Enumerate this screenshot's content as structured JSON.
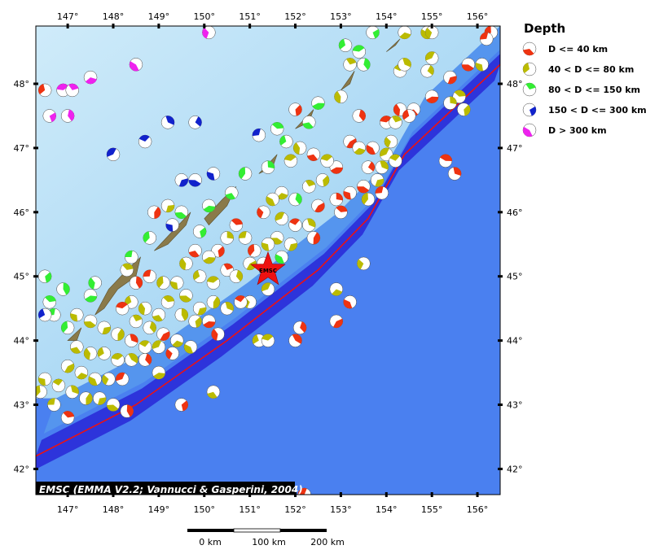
{
  "map": {
    "lon_range": [
      146.3,
      156.5
    ],
    "lat_range": [
      41.6,
      48.9
    ],
    "lon_ticks": [
      {
        "value": 147,
        "label": "147°"
      },
      {
        "value": 148,
        "label": "148°"
      },
      {
        "value": 149,
        "label": "149°"
      },
      {
        "value": 150,
        "label": "150°"
      },
      {
        "value": 151,
        "label": "151°"
      },
      {
        "value": 152,
        "label": "152°"
      },
      {
        "value": 153,
        "label": "153°"
      },
      {
        "value": 154,
        "label": "154°"
      },
      {
        "value": 155,
        "label": "155°"
      },
      {
        "value": 156,
        "label": "156°"
      }
    ],
    "lat_ticks": [
      {
        "value": 42,
        "label": "42°"
      },
      {
        "value": 43,
        "label": "43°"
      },
      {
        "value": 44,
        "label": "44°"
      },
      {
        "value": 45,
        "label": "45°"
      },
      {
        "value": 46,
        "label": "46°"
      },
      {
        "value": 47,
        "label": "47°"
      },
      {
        "value": 48,
        "label": "48°"
      }
    ],
    "trench_line": [
      [
        146.3,
        42.2
      ],
      [
        148.5,
        43.0
      ],
      [
        150.5,
        44.0
      ],
      [
        152.5,
        45.1
      ],
      [
        153.6,
        45.9
      ],
      [
        154.4,
        46.9
      ],
      [
        155.3,
        47.5
      ],
      [
        156.5,
        48.3
      ]
    ],
    "islands": [
      [
        [
          147.6,
          44.4
        ],
        [
          147.9,
          44.8
        ],
        [
          148.3,
          45.1
        ],
        [
          148.6,
          45.3
        ],
        [
          148.5,
          45.0
        ],
        [
          148.1,
          44.8
        ],
        [
          147.8,
          44.5
        ]
      ],
      [
        [
          148.9,
          45.4
        ],
        [
          149.3,
          45.7
        ],
        [
          149.7,
          46.0
        ],
        [
          149.6,
          45.8
        ],
        [
          149.2,
          45.5
        ]
      ],
      [
        [
          150.0,
          45.9
        ],
        [
          150.4,
          46.2
        ],
        [
          150.7,
          46.4
        ],
        [
          150.5,
          46.1
        ],
        [
          150.1,
          45.8
        ]
      ],
      [
        [
          151.2,
          46.6
        ],
        [
          151.6,
          46.9
        ],
        [
          151.5,
          46.7
        ]
      ],
      [
        [
          152.0,
          47.3
        ],
        [
          152.4,
          47.6
        ],
        [
          152.3,
          47.4
        ]
      ],
      [
        [
          153.0,
          47.9
        ],
        [
          153.3,
          48.2
        ],
        [
          153.2,
          48.0
        ]
      ],
      [
        [
          154.0,
          48.5
        ],
        [
          154.3,
          48.7
        ],
        [
          154.2,
          48.6
        ]
      ],
      [
        [
          147.0,
          44.0
        ],
        [
          147.3,
          44.2
        ],
        [
          147.2,
          44.0
        ]
      ]
    ],
    "epicenter": {
      "lon": 151.4,
      "lat": 45.1,
      "label": "EMSC"
    },
    "credit": "EMSC (EMMA V2.2; Vannucci & Gasperini, 2004)"
  },
  "legend": {
    "title": "Depth",
    "items": [
      {
        "label": "D <= 40 km",
        "color": "#ee3311",
        "key": "d1"
      },
      {
        "label": "40 < D <= 80 km",
        "color": "#bbbb00",
        "key": "d2"
      },
      {
        "label": "80 < D <= 150 km",
        "color": "#33ee33",
        "key": "d3"
      },
      {
        "label": "150 < D <= 300 km",
        "color": "#1122cc",
        "key": "d4"
      },
      {
        "label": "D > 300 km",
        "color": "#ee22ee",
        "key": "d5"
      }
    ]
  },
  "scale_bar": {
    "labels": [
      "0 km",
      "100 km",
      "200 km"
    ]
  },
  "events": [
    {
      "lon": 146.5,
      "lat": 47.9,
      "d": "d1"
    },
    {
      "lon": 146.9,
      "lat": 47.9,
      "d": "d5"
    },
    {
      "lon": 147.1,
      "lat": 47.9,
      "d": "d5"
    },
    {
      "lon": 147.0,
      "lat": 47.5,
      "d": "d5"
    },
    {
      "lon": 146.6,
      "lat": 47.5,
      "d": "d5"
    },
    {
      "lon": 147.5,
      "lat": 48.1,
      "d": "d5"
    },
    {
      "lon": 148.5,
      "lat": 48.3,
      "d": "d5"
    },
    {
      "lon": 150.1,
      "lat": 48.8,
      "d": "d5"
    },
    {
      "lon": 148.0,
      "lat": 46.9,
      "d": "d4"
    },
    {
      "lon": 148.7,
      "lat": 47.1,
      "d": "d4"
    },
    {
      "lon": 149.2,
      "lat": 47.4,
      "d": "d4"
    },
    {
      "lon": 149.8,
      "lat": 47.4,
      "d": "d4"
    },
    {
      "lon": 149.5,
      "lat": 46.5,
      "d": "d4"
    },
    {
      "lon": 149.8,
      "lat": 46.5,
      "d": "d4"
    },
    {
      "lon": 150.2,
      "lat": 46.6,
      "d": "d4"
    },
    {
      "lon": 150.9,
      "lat": 46.6,
      "d": "d3"
    },
    {
      "lon": 151.2,
      "lat": 47.2,
      "d": "d4"
    },
    {
      "lon": 151.6,
      "lat": 47.3,
      "d": "d3"
    },
    {
      "lon": 151.4,
      "lat": 46.7,
      "d": "d3"
    },
    {
      "lon": 152.0,
      "lat": 47.6,
      "d": "d1"
    },
    {
      "lon": 152.5,
      "lat": 47.7,
      "d": "d3"
    },
    {
      "lon": 152.3,
      "lat": 47.4,
      "d": "d3"
    },
    {
      "lon": 153.0,
      "lat": 47.8,
      "d": "d2"
    },
    {
      "lon": 153.1,
      "lat": 48.6,
      "d": "d3"
    },
    {
      "lon": 153.4,
      "lat": 48.5,
      "d": "d3"
    },
    {
      "lon": 153.2,
      "lat": 48.3,
      "d": "d2"
    },
    {
      "lon": 153.5,
      "lat": 48.3,
      "d": "d3"
    },
    {
      "lon": 153.7,
      "lat": 48.8,
      "d": "d3"
    },
    {
      "lon": 154.4,
      "lat": 48.8,
      "d": "d2"
    },
    {
      "lon": 154.9,
      "lat": 48.8,
      "d": "d2"
    },
    {
      "lon": 155.0,
      "lat": 48.8,
      "d": "d2"
    },
    {
      "lon": 155.0,
      "lat": 48.4,
      "d": "d2"
    },
    {
      "lon": 154.3,
      "lat": 48.2,
      "d": "d2"
    },
    {
      "lon": 154.4,
      "lat": 48.3,
      "d": "d2"
    },
    {
      "lon": 154.9,
      "lat": 48.2,
      "d": "d2"
    },
    {
      "lon": 155.4,
      "lat": 48.1,
      "d": "d1"
    },
    {
      "lon": 155.8,
      "lat": 48.3,
      "d": "d1"
    },
    {
      "lon": 156.1,
      "lat": 48.3,
      "d": "d2"
    },
    {
      "lon": 156.3,
      "lat": 48.8,
      "d": "d1"
    },
    {
      "lon": 156.2,
      "lat": 48.7,
      "d": "d1"
    },
    {
      "lon": 155.6,
      "lat": 47.8,
      "d": "d2"
    },
    {
      "lon": 155.4,
      "lat": 47.7,
      "d": "d2"
    },
    {
      "lon": 155.7,
      "lat": 47.6,
      "d": "d2"
    },
    {
      "lon": 155.0,
      "lat": 47.8,
      "d": "d1"
    },
    {
      "lon": 154.6,
      "lat": 47.6,
      "d": "d1"
    },
    {
      "lon": 154.3,
      "lat": 47.6,
      "d": "d1"
    },
    {
      "lon": 154.5,
      "lat": 47.5,
      "d": "d1"
    },
    {
      "lon": 154.0,
      "lat": 47.4,
      "d": "d1"
    },
    {
      "lon": 154.2,
      "lat": 47.4,
      "d": "d2"
    },
    {
      "lon": 153.4,
      "lat": 47.5,
      "d": "d1"
    },
    {
      "lon": 153.2,
      "lat": 47.1,
      "d": "d1"
    },
    {
      "lon": 153.4,
      "lat": 47.0,
      "d": "d2"
    },
    {
      "lon": 153.7,
      "lat": 47.0,
      "d": "d1"
    },
    {
      "lon": 154.1,
      "lat": 47.1,
      "d": "d2"
    },
    {
      "lon": 154.0,
      "lat": 46.9,
      "d": "d2"
    },
    {
      "lon": 154.2,
      "lat": 46.8,
      "d": "d2"
    },
    {
      "lon": 153.9,
      "lat": 46.7,
      "d": "d2"
    },
    {
      "lon": 153.6,
      "lat": 46.7,
      "d": "d1"
    },
    {
      "lon": 153.8,
      "lat": 46.5,
      "d": "d2"
    },
    {
      "lon": 153.5,
      "lat": 46.4,
      "d": "d1"
    },
    {
      "lon": 153.2,
      "lat": 46.3,
      "d": "d1"
    },
    {
      "lon": 153.6,
      "lat": 46.2,
      "d": "d2"
    },
    {
      "lon": 153.9,
      "lat": 46.3,
      "d": "d1"
    },
    {
      "lon": 153.0,
      "lat": 46.0,
      "d": "d1"
    },
    {
      "lon": 152.9,
      "lat": 46.2,
      "d": "d1"
    },
    {
      "lon": 152.6,
      "lat": 46.5,
      "d": "d2"
    },
    {
      "lon": 152.9,
      "lat": 46.7,
      "d": "d1"
    },
    {
      "lon": 152.4,
      "lat": 46.9,
      "d": "d1"
    },
    {
      "lon": 152.1,
      "lat": 47.0,
      "d": "d2"
    },
    {
      "lon": 151.8,
      "lat": 47.1,
      "d": "d3"
    },
    {
      "lon": 151.9,
      "lat": 46.8,
      "d": "d2"
    },
    {
      "lon": 152.3,
      "lat": 46.4,
      "d": "d2"
    },
    {
      "lon": 152.0,
      "lat": 46.2,
      "d": "d3"
    },
    {
      "lon": 152.5,
      "lat": 46.1,
      "d": "d1"
    },
    {
      "lon": 151.7,
      "lat": 46.3,
      "d": "d2"
    },
    {
      "lon": 151.5,
      "lat": 46.2,
      "d": "d2"
    },
    {
      "lon": 151.3,
      "lat": 46.0,
      "d": "d1"
    },
    {
      "lon": 151.7,
      "lat": 45.9,
      "d": "d2"
    },
    {
      "lon": 152.0,
      "lat": 45.8,
      "d": "d1"
    },
    {
      "lon": 152.3,
      "lat": 45.8,
      "d": "d2"
    },
    {
      "lon": 152.4,
      "lat": 45.6,
      "d": "d1"
    },
    {
      "lon": 151.9,
      "lat": 45.5,
      "d": "d2"
    },
    {
      "lon": 151.6,
      "lat": 45.6,
      "d": "d2"
    },
    {
      "lon": 151.4,
      "lat": 45.5,
      "d": "d2"
    },
    {
      "lon": 151.1,
      "lat": 45.4,
      "d": "d1"
    },
    {
      "lon": 150.9,
      "lat": 45.6,
      "d": "d2"
    },
    {
      "lon": 150.7,
      "lat": 45.8,
      "d": "d1"
    },
    {
      "lon": 150.5,
      "lat": 45.6,
      "d": "d2"
    },
    {
      "lon": 150.3,
      "lat": 45.4,
      "d": "d1"
    },
    {
      "lon": 150.1,
      "lat": 45.3,
      "d": "d2"
    },
    {
      "lon": 149.8,
      "lat": 45.4,
      "d": "d1"
    },
    {
      "lon": 149.6,
      "lat": 45.2,
      "d": "d2"
    },
    {
      "lon": 149.9,
      "lat": 45.0,
      "d": "d2"
    },
    {
      "lon": 150.2,
      "lat": 44.9,
      "d": "d2"
    },
    {
      "lon": 150.5,
      "lat": 45.1,
      "d": "d1"
    },
    {
      "lon": 150.7,
      "lat": 45.0,
      "d": "d2"
    },
    {
      "lon": 151.0,
      "lat": 45.2,
      "d": "d2"
    },
    {
      "lon": 151.3,
      "lat": 45.2,
      "d": "d2"
    },
    {
      "lon": 151.7,
      "lat": 45.3,
      "d": "d3"
    },
    {
      "lon": 151.0,
      "lat": 44.6,
      "d": "d2"
    },
    {
      "lon": 151.4,
      "lat": 44.8,
      "d": "d2"
    },
    {
      "lon": 150.8,
      "lat": 44.6,
      "d": "d1"
    },
    {
      "lon": 150.5,
      "lat": 44.5,
      "d": "d2"
    },
    {
      "lon": 150.2,
      "lat": 44.6,
      "d": "d2"
    },
    {
      "lon": 149.9,
      "lat": 44.5,
      "d": "d2"
    },
    {
      "lon": 149.6,
      "lat": 44.7,
      "d": "d2"
    },
    {
      "lon": 149.4,
      "lat": 44.9,
      "d": "d2"
    },
    {
      "lon": 149.1,
      "lat": 44.9,
      "d": "d2"
    },
    {
      "lon": 148.8,
      "lat": 45.0,
      "d": "d1"
    },
    {
      "lon": 149.2,
      "lat": 44.6,
      "d": "d2"
    },
    {
      "lon": 149.5,
      "lat": 44.4,
      "d": "d2"
    },
    {
      "lon": 149.8,
      "lat": 44.3,
      "d": "d2"
    },
    {
      "lon": 150.1,
      "lat": 44.3,
      "d": "d1"
    },
    {
      "lon": 149.0,
      "lat": 44.4,
      "d": "d2"
    },
    {
      "lon": 148.7,
      "lat": 44.5,
      "d": "d2"
    },
    {
      "lon": 148.4,
      "lat": 44.6,
      "d": "d2"
    },
    {
      "lon": 148.2,
      "lat": 44.5,
      "d": "d1"
    },
    {
      "lon": 148.5,
      "lat": 44.3,
      "d": "d2"
    },
    {
      "lon": 148.8,
      "lat": 44.2,
      "d": "d2"
    },
    {
      "lon": 149.1,
      "lat": 44.1,
      "d": "d1"
    },
    {
      "lon": 149.4,
      "lat": 44.0,
      "d": "d2"
    },
    {
      "lon": 149.7,
      "lat": 43.9,
      "d": "d2"
    },
    {
      "lon": 149.3,
      "lat": 43.8,
      "d": "d1"
    },
    {
      "lon": 149.0,
      "lat": 43.9,
      "d": "d2"
    },
    {
      "lon": 148.7,
      "lat": 43.9,
      "d": "d2"
    },
    {
      "lon": 148.4,
      "lat": 44.0,
      "d": "d1"
    },
    {
      "lon": 148.1,
      "lat": 44.1,
      "d": "d2"
    },
    {
      "lon": 147.8,
      "lat": 44.2,
      "d": "d2"
    },
    {
      "lon": 147.5,
      "lat": 44.3,
      "d": "d2"
    },
    {
      "lon": 147.2,
      "lat": 44.4,
      "d": "d2"
    },
    {
      "lon": 147.0,
      "lat": 44.2,
      "d": "d3"
    },
    {
      "lon": 146.7,
      "lat": 44.4,
      "d": "d3"
    },
    {
      "lon": 146.6,
      "lat": 44.6,
      "d": "d3"
    },
    {
      "lon": 146.9,
      "lat": 44.8,
      "d": "d3"
    },
    {
      "lon": 146.5,
      "lat": 45.0,
      "d": "d3"
    },
    {
      "lon": 147.5,
      "lat": 44.7,
      "d": "d3"
    },
    {
      "lon": 147.2,
      "lat": 43.9,
      "d": "d2"
    },
    {
      "lon": 147.5,
      "lat": 43.8,
      "d": "d2"
    },
    {
      "lon": 147.8,
      "lat": 43.8,
      "d": "d2"
    },
    {
      "lon": 148.1,
      "lat": 43.7,
      "d": "d2"
    },
    {
      "lon": 148.4,
      "lat": 43.7,
      "d": "d2"
    },
    {
      "lon": 148.7,
      "lat": 43.7,
      "d": "d1"
    },
    {
      "lon": 147.0,
      "lat": 43.6,
      "d": "d2"
    },
    {
      "lon": 147.3,
      "lat": 43.5,
      "d": "d2"
    },
    {
      "lon": 147.6,
      "lat": 43.4,
      "d": "d2"
    },
    {
      "lon": 147.9,
      "lat": 43.4,
      "d": "d2"
    },
    {
      "lon": 148.2,
      "lat": 43.4,
      "d": "d1"
    },
    {
      "lon": 146.8,
      "lat": 43.3,
      "d": "d2"
    },
    {
      "lon": 147.1,
      "lat": 43.2,
      "d": "d2"
    },
    {
      "lon": 147.4,
      "lat": 43.1,
      "d": "d2"
    },
    {
      "lon": 147.7,
      "lat": 43.1,
      "d": "d2"
    },
    {
      "lon": 148.0,
      "lat": 43.0,
      "d": "d2"
    },
    {
      "lon": 146.5,
      "lat": 43.4,
      "d": "d2"
    },
    {
      "lon": 146.4,
      "lat": 43.2,
      "d": "d2"
    },
    {
      "lon": 146.7,
      "lat": 43.0,
      "d": "d2"
    },
    {
      "lon": 147.0,
      "lat": 42.8,
      "d": "d1"
    },
    {
      "lon": 148.3,
      "lat": 42.9,
      "d": "d1"
    },
    {
      "lon": 149.5,
      "lat": 43.0,
      "d": "d1"
    },
    {
      "lon": 149.0,
      "lat": 43.5,
      "d": "d2"
    },
    {
      "lon": 150.2,
      "lat": 43.2,
      "d": "d2"
    },
    {
      "lon": 150.3,
      "lat": 44.1,
      "d": "d1"
    },
    {
      "lon": 151.2,
      "lat": 44.0,
      "d": "d2"
    },
    {
      "lon": 151.4,
      "lat": 44.0,
      "d": "d2"
    },
    {
      "lon": 152.0,
      "lat": 44.0,
      "d": "d1"
    },
    {
      "lon": 152.1,
      "lat": 44.2,
      "d": "d1"
    },
    {
      "lon": 152.9,
      "lat": 44.3,
      "d": "d1"
    },
    {
      "lon": 152.9,
      "lat": 44.8,
      "d": "d2"
    },
    {
      "lon": 153.2,
      "lat": 44.6,
      "d": "d1"
    },
    {
      "lon": 153.5,
      "lat": 45.2,
      "d": "d2"
    },
    {
      "lon": 152.2,
      "lat": 41.6,
      "d": "d1"
    },
    {
      "lon": 155.3,
      "lat": 46.8,
      "d": "d1"
    },
    {
      "lon": 155.5,
      "lat": 46.6,
      "d": "d1"
    },
    {
      "lon": 148.9,
      "lat": 46.0,
      "d": "d1"
    },
    {
      "lon": 149.2,
      "lat": 46.1,
      "d": "d2"
    },
    {
      "lon": 149.5,
      "lat": 46.0,
      "d": "d3"
    },
    {
      "lon": 149.3,
      "lat": 45.8,
      "d": "d4"
    },
    {
      "lon": 148.8,
      "lat": 45.6,
      "d": "d3"
    },
    {
      "lon": 148.4,
      "lat": 45.3,
      "d": "d3"
    },
    {
      "lon": 148.3,
      "lat": 45.1,
      "d": "d2"
    },
    {
      "lon": 148.5,
      "lat": 44.9,
      "d": "d1"
    },
    {
      "lon": 149.9,
      "lat": 45.7,
      "d": "d3"
    },
    {
      "lon": 150.1,
      "lat": 46.1,
      "d": "d3"
    },
    {
      "lon": 150.6,
      "lat": 46.3,
      "d": "d3"
    },
    {
      "lon": 147.6,
      "lat": 44.9,
      "d": "d3"
    },
    {
      "lon": 146.5,
      "lat": 44.4,
      "d": "d4"
    },
    {
      "lon": 152.7,
      "lat": 46.8,
      "d": "d2"
    }
  ]
}
